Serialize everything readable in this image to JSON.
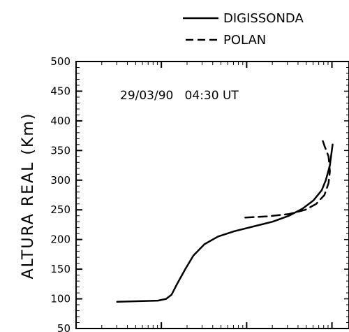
{
  "chart_data": {
    "type": "line",
    "ylabel": "ALTURA REAL (Km)",
    "ylim": [
      50,
      500
    ],
    "y_ticks": [
      50,
      100,
      150,
      200,
      250,
      300,
      350,
      400,
      450,
      500
    ],
    "annotation": "29/03/90   04:30 UT",
    "legend_position": "top-right",
    "series": [
      {
        "name": "DIGISSONDA",
        "style": "solid",
        "color": "#000000",
        "points": [
          [
            0.15,
            95
          ],
          [
            0.22,
            96
          ],
          [
            0.3,
            97
          ],
          [
            0.33,
            100
          ],
          [
            0.35,
            107
          ],
          [
            0.37,
            125
          ],
          [
            0.4,
            150
          ],
          [
            0.43,
            173
          ],
          [
            0.47,
            192
          ],
          [
            0.52,
            205
          ],
          [
            0.58,
            214
          ],
          [
            0.65,
            222
          ],
          [
            0.72,
            230
          ],
          [
            0.78,
            240
          ],
          [
            0.83,
            252
          ],
          [
            0.87,
            266
          ],
          [
            0.9,
            283
          ],
          [
            0.915,
            300
          ],
          [
            0.93,
            325
          ],
          [
            0.94,
            360
          ]
        ]
      },
      {
        "name": "POLAN",
        "style": "dashed",
        "color": "#000000",
        "points": [
          [
            0.62,
            237
          ],
          [
            0.7,
            239
          ],
          [
            0.78,
            243
          ],
          [
            0.84,
            250
          ],
          [
            0.88,
            260
          ],
          [
            0.91,
            275
          ],
          [
            0.925,
            295
          ],
          [
            0.93,
            315
          ],
          [
            0.925,
            340
          ],
          [
            0.91,
            358
          ],
          [
            0.9,
            372
          ]
        ]
      }
    ]
  }
}
